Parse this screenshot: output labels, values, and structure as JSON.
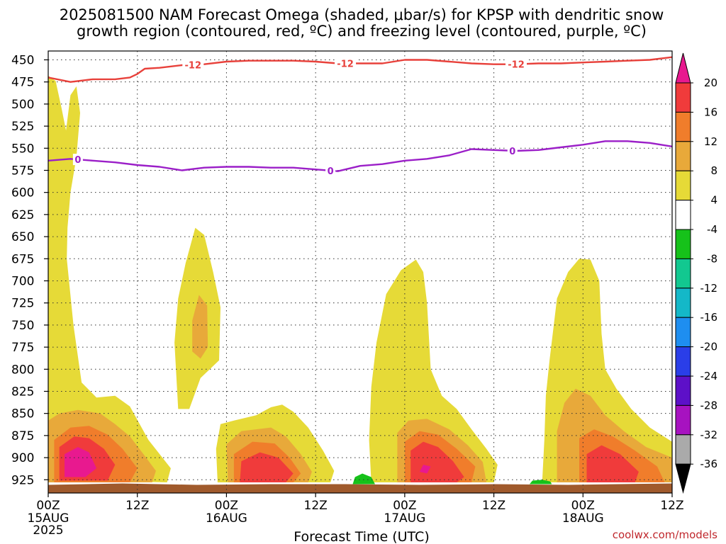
{
  "title": {
    "line1": "2025081500 NAM Forecast Omega (shaded, μbar/s) for KPSP with dendritic snow",
    "line2": "growth region (contoured, red, ºC) and freezing level (contoured, purple, ºC)"
  },
  "credit": "coolwx.com/models",
  "chart_data": {
    "type": "heatmap",
    "xlabel": "Forecast Time (UTC)",
    "ylabel": "",
    "x_ticks": [
      {
        "hour": 0,
        "label": "00Z",
        "sub": [
          "15AUG",
          "2025"
        ]
      },
      {
        "hour": 12,
        "label": "12Z",
        "sub": []
      },
      {
        "hour": 24,
        "label": "00Z",
        "sub": [
          "16AUG"
        ]
      },
      {
        "hour": 36,
        "label": "12Z",
        "sub": []
      },
      {
        "hour": 48,
        "label": "00Z",
        "sub": [
          "17AUG"
        ]
      },
      {
        "hour": 60,
        "label": "12Z",
        "sub": []
      },
      {
        "hour": 72,
        "label": "00Z",
        "sub": [
          "18AUG"
        ]
      },
      {
        "hour": 84,
        "label": "12Z",
        "sub": []
      }
    ],
    "xlim": [
      0,
      84
    ],
    "ylim": [
      940,
      440
    ],
    "y_ticks": [
      450,
      475,
      500,
      525,
      550,
      575,
      600,
      625,
      650,
      675,
      700,
      725,
      750,
      775,
      800,
      825,
      850,
      875,
      900,
      925
    ],
    "grid": true,
    "colorbar": {
      "labels": [
        "20",
        "16",
        "12",
        "8",
        "4",
        "-4",
        "-8",
        "-12",
        "-16",
        "-20",
        "-24",
        "-28",
        "-32",
        "-36"
      ],
      "levels": [
        {
          "range": "above 20",
          "color": "#e8198f"
        },
        {
          "range": "16 to 20",
          "color": "#f03b3b"
        },
        {
          "range": "12 to 16",
          "color": "#f07d2b"
        },
        {
          "range": "8 to 12",
          "color": "#e8a93a"
        },
        {
          "range": "4 to 8",
          "color": "#e6da37"
        },
        {
          "range": "-4 to 4",
          "color": "#ffffff"
        },
        {
          "range": "-8 to -4",
          "color": "#16c21a"
        },
        {
          "range": "-12 to -8",
          "color": "#12c890"
        },
        {
          "range": "-16 to -12",
          "color": "#14b8c8"
        },
        {
          "range": "-20 to -16",
          "color": "#1e8ef0"
        },
        {
          "range": "-24 to -20",
          "color": "#2a3ee8"
        },
        {
          "range": "-28 to -24",
          "color": "#5d10c8"
        },
        {
          "range": "-32 to -28",
          "color": "#a712c0"
        },
        {
          "range": "-36 to -32",
          "color": "#aaaaaa"
        },
        {
          "range": "below -36",
          "color": "#000000"
        }
      ]
    },
    "contours": [
      {
        "name": "-12",
        "color": "#e8413b",
        "labels_at_hours": [
          19.5,
          40,
          63
        ],
        "points": [
          [
            0,
            470
          ],
          [
            3,
            475
          ],
          [
            6,
            472
          ],
          [
            9,
            472
          ],
          [
            11,
            470
          ],
          [
            12,
            466
          ],
          [
            13,
            460
          ],
          [
            15,
            459
          ],
          [
            18,
            456
          ],
          [
            21,
            455
          ],
          [
            24,
            452
          ],
          [
            27,
            451
          ],
          [
            30,
            451
          ],
          [
            33,
            451
          ],
          [
            36,
            452
          ],
          [
            39,
            454
          ],
          [
            42,
            454
          ],
          [
            45,
            454
          ],
          [
            48,
            450
          ],
          [
            51,
            450
          ],
          [
            54,
            452
          ],
          [
            57,
            454
          ],
          [
            60,
            455
          ],
          [
            63,
            455
          ],
          [
            66,
            454
          ],
          [
            69,
            454
          ],
          [
            72,
            453
          ],
          [
            75,
            452
          ],
          [
            78,
            451
          ],
          [
            81,
            450
          ],
          [
            84,
            447
          ]
        ]
      },
      {
        "name": "0",
        "color": "#9b1fc8",
        "labels_at_hours": [
          4,
          38,
          62.5
        ],
        "points": [
          [
            0,
            564
          ],
          [
            3,
            562
          ],
          [
            6,
            564
          ],
          [
            9,
            566
          ],
          [
            12,
            569
          ],
          [
            15,
            571
          ],
          [
            18,
            575
          ],
          [
            21,
            572
          ],
          [
            24,
            571
          ],
          [
            27,
            571
          ],
          [
            30,
            572
          ],
          [
            33,
            572
          ],
          [
            36,
            574
          ],
          [
            39,
            576
          ],
          [
            42,
            570
          ],
          [
            45,
            568
          ],
          [
            48,
            564
          ],
          [
            51,
            562
          ],
          [
            54,
            558
          ],
          [
            57,
            551
          ],
          [
            60,
            552
          ],
          [
            63,
            553
          ],
          [
            66,
            552
          ],
          [
            69,
            549
          ],
          [
            72,
            546
          ],
          [
            75,
            542
          ],
          [
            78,
            542
          ],
          [
            81,
            544
          ],
          [
            84,
            548
          ]
        ]
      }
    ],
    "omega_cells": [
      {
        "x0": 0,
        "x1": 16,
        "top": 470,
        "peak_hour": 2.5,
        "max_level": "above 20"
      },
      {
        "x0": 17,
        "x1": 23,
        "top": 640,
        "peak_hour": 20,
        "max_level": "8 to 12"
      },
      {
        "x0": 22,
        "x1": 38,
        "top": 845,
        "peak_hour": 27,
        "max_level": "16 to 20"
      },
      {
        "x0": 43,
        "x1": 60,
        "top": 680,
        "peak_hour": 50.5,
        "max_level": "above 20"
      },
      {
        "x0": 66,
        "x1": 84,
        "top": 675,
        "peak_hour": 74,
        "max_level": "16 to 20"
      }
    ],
    "negative_omega_cells": [
      {
        "x0": 40.5,
        "x1": 44,
        "top": 922,
        "max_level": "-8 to -4"
      },
      {
        "x0": 64.5,
        "x1": 68,
        "top": 928,
        "max_level": "-8 to -4"
      }
    ],
    "terrain": {
      "color": "#a05a2c",
      "pressure": 930
    }
  }
}
